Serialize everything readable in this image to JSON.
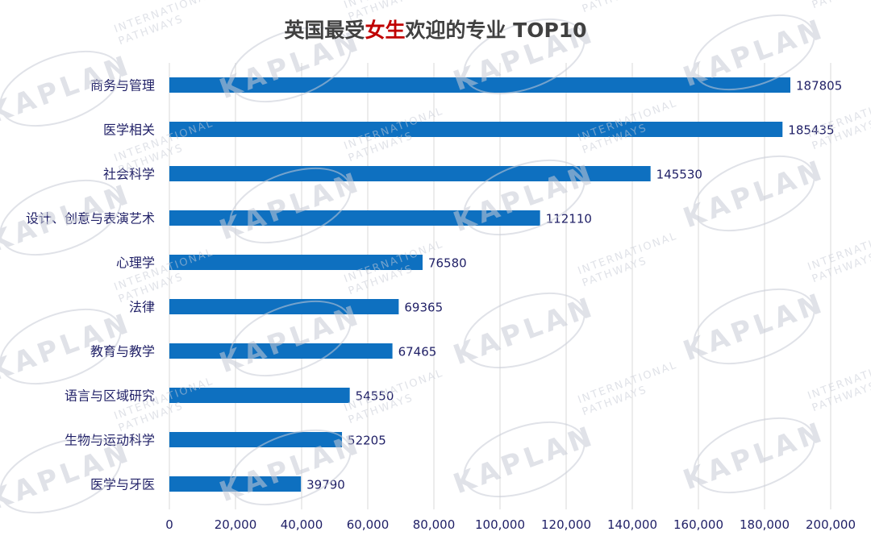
{
  "chart_data": {
    "type": "bar",
    "orientation": "horizontal",
    "title": {
      "prefix": "英国最受",
      "highlight": "女生",
      "suffix": "欢迎的专业 TOP10"
    },
    "categories": [
      "商务与管理",
      "医学相关",
      "社会科学",
      "设计、创意与表演艺术",
      "心理学",
      "法律",
      "教育与教学",
      "语言与区域研究",
      "生物与运动科学",
      "医学与牙医"
    ],
    "values": [
      187805,
      185435,
      145530,
      112110,
      76580,
      69365,
      67465,
      54550,
      52205,
      39790
    ],
    "xlim": [
      0,
      200000
    ],
    "xticks": [
      "0",
      "20,000",
      "40,000",
      "60,000",
      "80,000",
      "100,000",
      "120,000",
      "140,000",
      "160,000",
      "180,000",
      "200,000"
    ],
    "grid": true,
    "legend": "none",
    "xlabel": "",
    "ylabel": "",
    "colors": {
      "bar": "#0e70c0",
      "grid": "#d9d9d9",
      "highlight": "#c00000"
    }
  },
  "watermark": {
    "brand": "KAPLAN",
    "line1": "INTERNATIONAL",
    "line2": "PATHWAYS"
  }
}
